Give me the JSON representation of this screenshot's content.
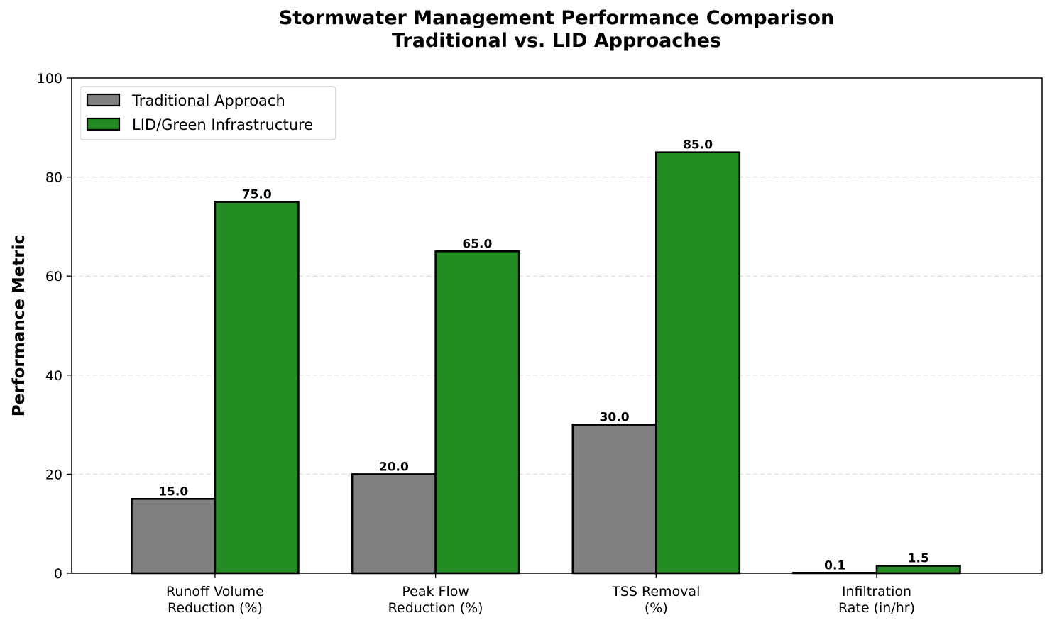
{
  "chart_data": {
    "type": "bar",
    "title_line1": "Stormwater Management Performance Comparison",
    "title_line2": "Traditional vs. LID Approaches",
    "ylabel": "Performance Metric",
    "xlabel": "",
    "ylim": [
      0,
      100
    ],
    "yticks": [
      0,
      20,
      40,
      60,
      80,
      100
    ],
    "grid": true,
    "legend_position": "top-left",
    "categories": [
      [
        "Runoff Volume",
        "Reduction (%)"
      ],
      [
        "Peak Flow",
        "Reduction (%)"
      ],
      [
        "TSS Removal",
        "(%)"
      ],
      [
        "Infiltration",
        "Rate (in/hr)"
      ]
    ],
    "series": [
      {
        "name": "Traditional Approach",
        "color": "#808080",
        "values": [
          15.0,
          20.0,
          30.0,
          0.1
        ]
      },
      {
        "name": "LID/Green Infrastructure",
        "color": "#228B22",
        "values": [
          75.0,
          65.0,
          85.0,
          1.5
        ]
      }
    ]
  }
}
